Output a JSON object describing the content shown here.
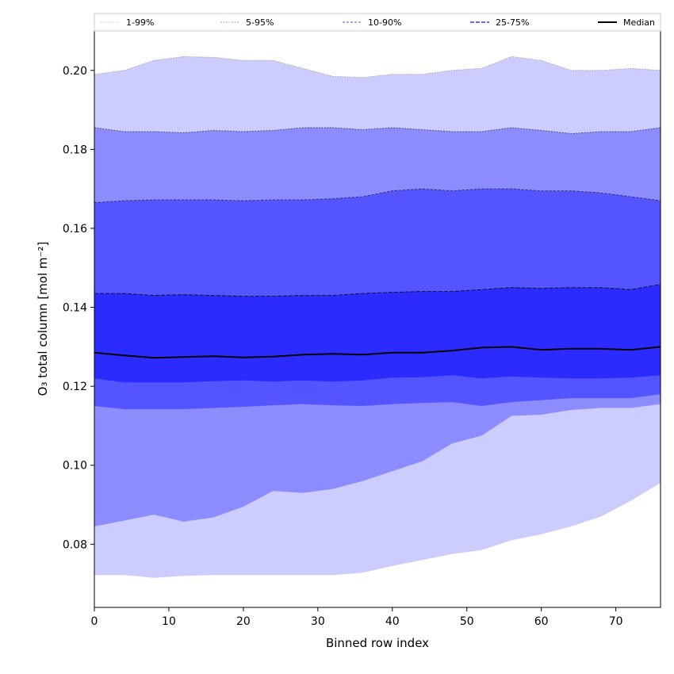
{
  "chart_data": {
    "type": "area",
    "title": "",
    "xlabel": "Binned row index",
    "ylabel": "O₃ total column [mol m⁻²]",
    "xlim": [
      0,
      76
    ],
    "ylim": [
      0.064,
      0.21
    ],
    "xticks": [
      0,
      10,
      20,
      30,
      40,
      50,
      60,
      70
    ],
    "xtick_labels": [
      "0",
      "10",
      "20",
      "30",
      "40",
      "50",
      "60",
      "70"
    ],
    "yticks": [
      0.08,
      0.1,
      0.12,
      0.14,
      0.16,
      0.18,
      0.2
    ],
    "ytick_labels": [
      "0.08",
      "0.10",
      "0.12",
      "0.14",
      "0.16",
      "0.18",
      "0.20"
    ],
    "legend_position": "top, above plot",
    "colors": {
      "band_1_99": "#ccccff",
      "band_5_95": "#8c8cff",
      "band_10_90": "#5555ff",
      "band_25_75": "#2b2bff",
      "median": "#000000",
      "edge_1_99": "#aaaaaa",
      "edge_5_95": "#555577",
      "edge_10_90": "#333366",
      "edge_25_75": "#111133"
    },
    "x": [
      0,
      4,
      8,
      12,
      16,
      20,
      24,
      28,
      32,
      36,
      40,
      44,
      48,
      52,
      56,
      60,
      64,
      68,
      72,
      76
    ],
    "series": [
      {
        "name": "Median",
        "values": [
          0.1285,
          0.1278,
          0.1272,
          0.1274,
          0.1276,
          0.1273,
          0.1275,
          0.128,
          0.1282,
          0.128,
          0.1285,
          0.1285,
          0.129,
          0.1298,
          0.13,
          0.1292,
          0.1295,
          0.1295,
          0.1292,
          0.13
        ]
      }
    ],
    "bands": [
      {
        "name": "1-99%",
        "upper": [
          0.199,
          0.2,
          0.2025,
          0.2035,
          0.2033,
          0.2025,
          0.2025,
          0.2005,
          0.1985,
          0.1982,
          0.199,
          0.199,
          0.2,
          0.2005,
          0.2035,
          0.2025,
          0.2,
          0.2,
          0.2005,
          0.2
        ],
        "lower": [
          0.0722,
          0.0722,
          0.0715,
          0.072,
          0.0722,
          0.0722,
          0.0722,
          0.0722,
          0.0722,
          0.0728,
          0.0745,
          0.076,
          0.0775,
          0.0785,
          0.081,
          0.0825,
          0.0845,
          0.087,
          0.091,
          0.0955
        ]
      },
      {
        "name": "5-95%",
        "upper": [
          0.1855,
          0.1845,
          0.1845,
          0.1842,
          0.1848,
          0.1845,
          0.1848,
          0.1855,
          0.1855,
          0.185,
          0.1855,
          0.185,
          0.1845,
          0.1845,
          0.1855,
          0.1848,
          0.184,
          0.1845,
          0.1845,
          0.1855
        ],
        "lower": [
          0.0845,
          0.086,
          0.0875,
          0.0857,
          0.0868,
          0.0895,
          0.0935,
          0.093,
          0.094,
          0.096,
          0.0985,
          0.101,
          0.1055,
          0.1075,
          0.1125,
          0.1128,
          0.114,
          0.1145,
          0.1145,
          0.1155
        ]
      },
      {
        "name": "10-90%",
        "upper": [
          0.1665,
          0.167,
          0.1672,
          0.1672,
          0.1672,
          0.167,
          0.1672,
          0.1672,
          0.1675,
          0.168,
          0.1695,
          0.17,
          0.1695,
          0.17,
          0.17,
          0.1695,
          0.1695,
          0.169,
          0.168,
          0.167
        ],
        "lower": [
          0.115,
          0.1142,
          0.1142,
          0.1142,
          0.1145,
          0.1148,
          0.1152,
          0.1155,
          0.1152,
          0.115,
          0.1155,
          0.1158,
          0.116,
          0.115,
          0.116,
          0.1165,
          0.117,
          0.117,
          0.117,
          0.118
        ]
      },
      {
        "name": "25-75%",
        "upper": [
          0.1435,
          0.1435,
          0.143,
          0.1432,
          0.143,
          0.1428,
          0.1428,
          0.143,
          0.143,
          0.1435,
          0.1438,
          0.144,
          0.144,
          0.1445,
          0.145,
          0.1448,
          0.145,
          0.145,
          0.1445,
          0.1458
        ],
        "lower": [
          0.122,
          0.121,
          0.121,
          0.121,
          0.1213,
          0.1215,
          0.1212,
          0.1215,
          0.1212,
          0.1215,
          0.1222,
          0.1223,
          0.1228,
          0.122,
          0.1225,
          0.1222,
          0.122,
          0.122,
          0.1222,
          0.1228
        ]
      }
    ],
    "legend": [
      "1-99%",
      "5-95%",
      "10-90%",
      "25-75%",
      "Median"
    ]
  }
}
